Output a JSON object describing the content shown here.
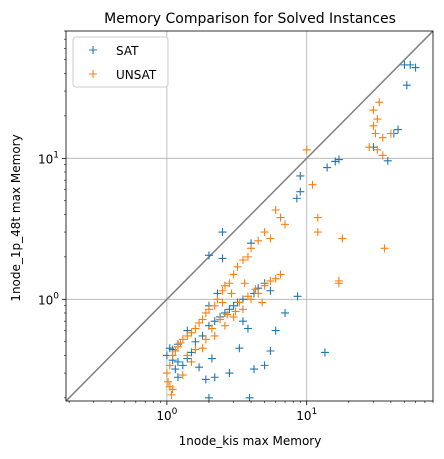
{
  "chart_data": {
    "type": "scatter",
    "title": "Memory Comparison for Solved Instances",
    "xlabel": "1node_kis max Memory",
    "ylabel": "1node_1p_48t max Memory",
    "xscale": "log",
    "yscale": "log",
    "xlim": [
      0.19,
      80
    ],
    "ylim": [
      0.19,
      80
    ],
    "grid": true,
    "legend_position": "top-left",
    "diagonal": {
      "from": 0.19,
      "to": 80,
      "color": "#808080"
    },
    "x_ticks": [
      {
        "value": 1,
        "base": "10",
        "exp": "0"
      },
      {
        "value": 10,
        "base": "10",
        "exp": "1"
      }
    ],
    "y_ticks": [
      {
        "value": 1,
        "base": "10",
        "exp": "0"
      },
      {
        "value": 10,
        "base": "10",
        "exp": "1"
      }
    ],
    "series": [
      {
        "name": "SAT",
        "color": "#1f77b4",
        "points": [
          [
            50,
            46
          ],
          [
            55,
            46
          ],
          [
            60,
            44
          ],
          [
            52,
            33
          ],
          [
            45,
            16
          ],
          [
            42,
            15
          ],
          [
            38,
            9.6
          ],
          [
            30,
            12
          ],
          [
            17,
            9.8
          ],
          [
            16,
            9.5
          ],
          [
            14,
            8.6
          ],
          [
            9,
            7.5
          ],
          [
            9,
            5.8
          ],
          [
            8.5,
            5.2
          ],
          [
            13.5,
            0.42
          ],
          [
            8.6,
            1.05
          ],
          [
            4.0,
            2.5
          ],
          [
            2.5,
            3.0
          ],
          [
            2.0,
            2.05
          ],
          [
            2.5,
            1.95
          ],
          [
            1.1,
            0.44
          ],
          [
            1.05,
            0.45
          ],
          [
            1.15,
            0.32
          ],
          [
            1.0,
            0.4
          ],
          [
            1.2,
            0.36
          ],
          [
            1.3,
            0.34
          ],
          [
            1.4,
            0.38
          ],
          [
            1.5,
            0.42
          ],
          [
            1.6,
            0.5
          ],
          [
            1.8,
            0.55
          ],
          [
            2.0,
            0.65
          ],
          [
            2.2,
            0.7
          ],
          [
            2.4,
            0.75
          ],
          [
            2.6,
            0.8
          ],
          [
            2.8,
            0.85
          ],
          [
            3.0,
            0.9
          ],
          [
            3.2,
            0.95
          ],
          [
            3.5,
            1.0
          ],
          [
            3.8,
            0.62
          ],
          [
            4.2,
            1.1
          ],
          [
            4.5,
            1.2
          ],
          [
            5.0,
            1.3
          ],
          [
            5.5,
            1.15
          ],
          [
            6.0,
            0.6
          ],
          [
            7.0,
            0.8
          ],
          [
            2.2,
            0.28
          ],
          [
            1.9,
            0.27
          ],
          [
            3.9,
            0.2
          ],
          [
            5.5,
            0.43
          ],
          [
            5.0,
            0.34
          ],
          [
            4.2,
            0.32
          ],
          [
            2.8,
            0.3
          ],
          [
            3.3,
            0.45
          ],
          [
            1.7,
            0.33
          ],
          [
            2.1,
            0.38
          ],
          [
            1.4,
            0.6
          ],
          [
            1.2,
            0.48
          ],
          [
            1.1,
            0.37
          ],
          [
            1.2,
            0.28
          ],
          [
            2.0,
            0.9
          ],
          [
            2.3,
            1.1
          ],
          [
            3.5,
            0.7
          ],
          [
            2.0,
            0.2
          ]
        ]
      },
      {
        "name": "UNSAT",
        "color": "#ff7f0e",
        "points": [
          [
            33,
            25
          ],
          [
            30,
            22
          ],
          [
            32,
            19
          ],
          [
            30,
            17
          ],
          [
            31,
            15
          ],
          [
            35,
            14
          ],
          [
            40,
            15
          ],
          [
            28,
            12
          ],
          [
            32,
            11.5
          ],
          [
            35,
            10.5
          ],
          [
            10,
            11.5
          ],
          [
            11,
            6.5
          ],
          [
            12,
            3.8
          ],
          [
            18,
            2.7
          ],
          [
            36,
            2.3
          ],
          [
            17,
            1.35
          ],
          [
            17,
            1.3
          ],
          [
            12,
            3.0
          ],
          [
            7,
            3.4
          ],
          [
            6.5,
            3.8
          ],
          [
            6,
            4.3
          ],
          [
            5.5,
            2.7
          ],
          [
            5,
            3.0
          ],
          [
            4.5,
            2.6
          ],
          [
            4.0,
            2.3
          ],
          [
            3.8,
            2.0
          ],
          [
            3.5,
            1.9
          ],
          [
            3.2,
            1.7
          ],
          [
            3.0,
            1.5
          ],
          [
            2.8,
            1.3
          ],
          [
            2.6,
            1.25
          ],
          [
            2.5,
            1.15
          ],
          [
            2.3,
            1.0
          ],
          [
            2.2,
            0.9
          ],
          [
            2.0,
            0.85
          ],
          [
            1.9,
            0.8
          ],
          [
            1.8,
            0.72
          ],
          [
            1.7,
            0.68
          ],
          [
            1.6,
            0.62
          ],
          [
            1.5,
            0.58
          ],
          [
            1.4,
            0.55
          ],
          [
            1.3,
            0.52
          ],
          [
            1.25,
            0.49
          ],
          [
            1.2,
            0.46
          ],
          [
            1.15,
            0.43
          ],
          [
            1.1,
            0.4
          ],
          [
            1.05,
            0.34
          ],
          [
            1.0,
            0.3
          ],
          [
            1.02,
            0.26
          ],
          [
            1.05,
            0.24
          ],
          [
            1.1,
            0.23
          ],
          [
            1.08,
            0.21
          ],
          [
            1.3,
            0.29
          ],
          [
            1.5,
            0.36
          ],
          [
            1.8,
            0.45
          ],
          [
            2.2,
            0.55
          ],
          [
            2.6,
            0.65
          ],
          [
            3.0,
            0.75
          ],
          [
            3.5,
            0.85
          ],
          [
            4.0,
            1.0
          ],
          [
            4.5,
            1.1
          ],
          [
            5.0,
            1.25
          ],
          [
            5.5,
            1.35
          ],
          [
            6.0,
            1.4
          ],
          [
            6.5,
            1.5
          ],
          [
            2.4,
            0.72
          ],
          [
            2.7,
            0.78
          ],
          [
            3.3,
            0.95
          ],
          [
            3.8,
            1.05
          ],
          [
            4.3,
            1.18
          ],
          [
            1.9,
            0.52
          ],
          [
            1.6,
            0.44
          ],
          [
            1.4,
            0.4
          ],
          [
            2.1,
            0.62
          ],
          [
            3.1,
            0.82
          ],
          [
            4.8,
            0.95
          ],
          [
            3.6,
            1.3
          ],
          [
            2.9,
            1.1
          ],
          [
            2.5,
            0.95
          ]
        ]
      }
    ]
  }
}
